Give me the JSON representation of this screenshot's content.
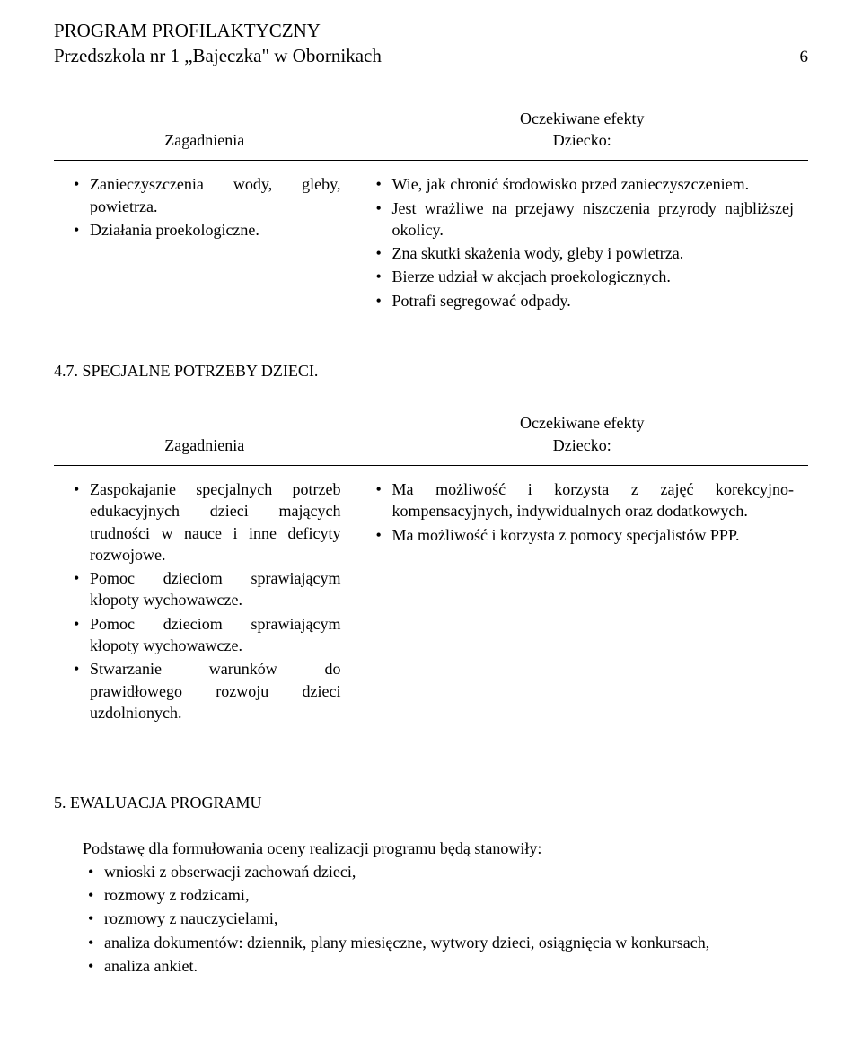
{
  "header": {
    "title": "PROGRAM PROFILAKTYCZNY",
    "subtitle": "Przedszkola nr 1 „Bajeczka\" w Obornikach",
    "page_number": "6"
  },
  "table1": {
    "left_heading": "Zagadnienia",
    "right_heading_line1": "Oczekiwane efekty",
    "right_heading_line2": "Dziecko:",
    "left_items": [
      "Zanieczyszczenia wody, gleby, powietrza.",
      "Działania proekologiczne."
    ],
    "right_items": [
      "Wie, jak chronić środowisko przed zanieczyszczeniem.",
      "Jest wrażliwe na przejawy niszczenia przyrody najbliższej okolicy.",
      "Zna skutki skażenia wody, gleby i powietrza.",
      "Bierze udział w akcjach proekologicznych.",
      "Potrafi segregować odpady."
    ]
  },
  "section47_heading": "4.7. SPECJALNE POTRZEBY DZIECI.",
  "table2": {
    "left_heading": "Zagadnienia",
    "right_heading_line1": "Oczekiwane efekty",
    "right_heading_line2": "Dziecko:",
    "left_items": [
      "Zaspokajanie specjalnych potrzeb edukacyjnych dzieci mających trudności w nauce i inne deficyty rozwojowe.",
      "Pomoc dzieciom sprawiającym kłopoty wychowawcze.",
      "Pomoc dzieciom sprawiającym kłopoty wychowawcze.",
      "Stwarzanie warunków do prawidłowego rozwoju dzieci uzdolnionych."
    ],
    "right_items": [
      "Ma możliwość i korzysta z zajęć korekcyjno-kompensacyjnych, indywidualnych oraz dodatkowych.",
      "Ma możliwość i korzysta z pomocy specjalistów PPP."
    ]
  },
  "evaluation": {
    "title": "5. EWALUACJA PROGRAMU",
    "intro": "Podstawę dla formułowania oceny realizacji programu będą stanowiły:",
    "items": [
      "wnioski z obserwacji zachowań dzieci,",
      "rozmowy z rodzicami,",
      "rozmowy z nauczycielami,",
      "analiza dokumentów: dziennik, plany miesięczne, wytwory dzieci, osiągnięcia w konkursach,",
      "analiza ankiet."
    ]
  }
}
